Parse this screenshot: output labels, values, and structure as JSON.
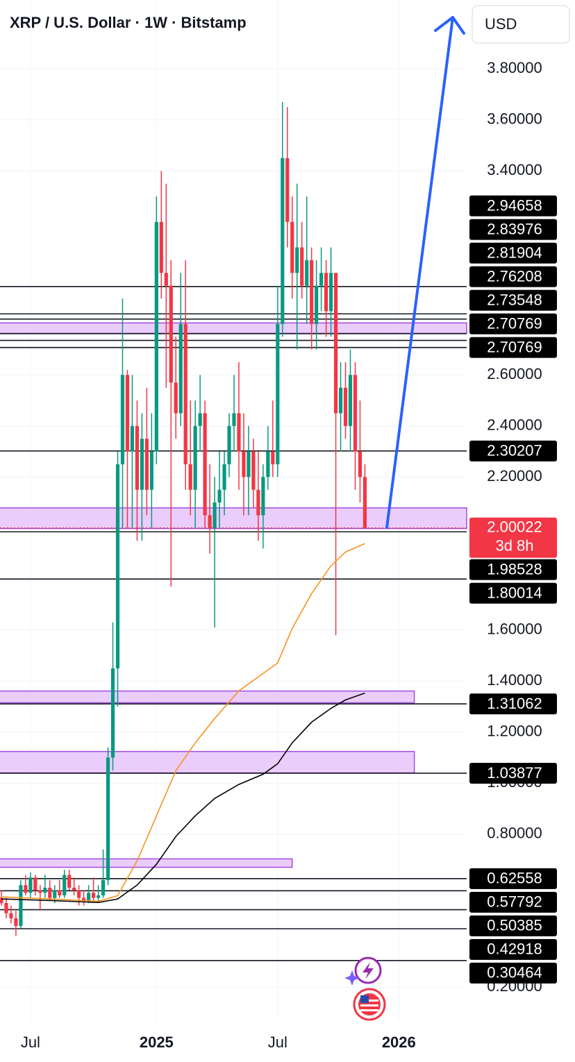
{
  "chart_data": {
    "type": "candlestick",
    "title": "XRP / U.S. Dollar · 1W · Bitstamp",
    "currency": "USD",
    "up_color": "#089981",
    "down_color": "#f23645",
    "xlim": [
      0,
      96
    ],
    "ylim": [
      0.07,
      4.07
    ],
    "yticks": [
      {
        "value": 3.8,
        "label": "3.80000"
      },
      {
        "value": 3.6,
        "label": "3.60000"
      },
      {
        "value": 3.4,
        "label": "3.40000"
      },
      {
        "value": 2.6,
        "label": "2.60000"
      },
      {
        "value": 2.4,
        "label": "2.40000"
      },
      {
        "value": 2.2,
        "label": "2.20000"
      },
      {
        "value": 1.6,
        "label": "1.60000"
      },
      {
        "value": 1.4,
        "label": "1.40000"
      },
      {
        "value": 1.2,
        "label": "1.20000"
      },
      {
        "value": 1.0,
        "label": "1.00000"
      },
      {
        "value": 0.8,
        "label": "0.80000"
      },
      {
        "value": 0.2,
        "label": "0.20000"
      }
    ],
    "xticks": [
      {
        "value": 6,
        "label": "Jul"
      },
      {
        "value": 32,
        "label": "2025"
      },
      {
        "value": 57,
        "label": "Jul"
      },
      {
        "value": 82,
        "label": "2026"
      }
    ],
    "x": [
      0,
      1,
      2,
      3,
      4,
      5,
      6,
      7,
      8,
      9,
      10,
      11,
      12,
      13,
      14,
      15,
      16,
      17,
      18,
      19,
      20,
      21,
      22,
      23,
      24,
      25,
      26,
      27,
      28,
      29,
      30,
      31,
      32,
      33,
      34,
      35,
      36,
      37,
      38,
      39,
      40,
      41,
      42,
      43,
      44,
      45,
      46,
      47,
      48,
      49,
      50,
      51,
      52,
      53,
      54,
      55,
      56,
      57,
      58,
      59,
      60,
      61,
      62,
      63,
      64,
      65,
      66,
      67,
      68,
      69,
      70,
      71,
      72,
      73,
      74,
      75
    ],
    "open": [
      0.55,
      0.53,
      0.49,
      0.47,
      0.44,
      0.6,
      0.57,
      0.63,
      0.58,
      0.57,
      0.59,
      0.55,
      0.58,
      0.56,
      0.64,
      0.59,
      0.58,
      0.55,
      0.54,
      0.57,
      0.55,
      0.56,
      0.62,
      1.1,
      1.45,
      2.25,
      2.6,
      2.3,
      2.4,
      2.15,
      2.35,
      2.15,
      2.3,
      3.2,
      3.0,
      2.95,
      2.57,
      2.45,
      2.8,
      2.25,
      2.15,
      2.4,
      2.45,
      2.05,
      2.0,
      2.1,
      2.15,
      2.25,
      2.4,
      2.45,
      2.3,
      2.2,
      2.3,
      2.15,
      2.05,
      2.2,
      2.3,
      2.25,
      2.8,
      3.45,
      3.2,
      3.0,
      3.1,
      2.95,
      3.05,
      2.8,
      2.95,
      3.0,
      2.85,
      3.0,
      2.45,
      2.55,
      2.4,
      2.6,
      2.3,
      2.2
    ],
    "high": [
      0.58,
      0.55,
      0.52,
      0.5,
      0.62,
      0.64,
      0.65,
      0.64,
      0.6,
      0.64,
      0.62,
      0.6,
      0.62,
      0.66,
      0.66,
      0.63,
      0.6,
      0.58,
      0.6,
      0.63,
      0.6,
      0.74,
      1.14,
      1.63,
      2.3,
      2.9,
      2.62,
      2.6,
      2.5,
      2.45,
      2.55,
      2.45,
      3.3,
      3.4,
      3.35,
      3.05,
      2.75,
      3.0,
      3.05,
      2.5,
      2.5,
      2.6,
      2.5,
      2.25,
      2.2,
      2.3,
      2.3,
      2.45,
      2.6,
      2.65,
      2.45,
      2.4,
      2.35,
      2.3,
      2.25,
      2.4,
      2.5,
      2.95,
      3.67,
      3.65,
      3.3,
      3.35,
      3.2,
      3.3,
      3.1,
      3.05,
      3.1,
      3.05,
      3.1,
      3.0,
      2.65,
      2.65,
      2.7,
      2.65,
      2.5,
      2.25
    ],
    "low": [
      0.52,
      0.47,
      0.45,
      0.4,
      0.43,
      0.56,
      0.55,
      0.56,
      0.5,
      0.55,
      0.54,
      0.53,
      0.55,
      0.55,
      0.58,
      0.56,
      0.52,
      0.52,
      0.53,
      0.54,
      0.53,
      0.55,
      0.6,
      1.05,
      1.3,
      2.0,
      2.0,
      2.0,
      1.95,
      1.95,
      2.05,
      2.0,
      2.25,
      2.9,
      2.55,
      1.77,
      2.35,
      2.4,
      2.15,
      2.05,
      2.0,
      2.3,
      2.0,
      1.9,
      1.61,
      2.0,
      2.05,
      2.2,
      2.3,
      2.15,
      2.05,
      2.05,
      2.08,
      1.95,
      1.92,
      2.15,
      2.2,
      2.2,
      2.75,
      3.1,
      2.9,
      2.7,
      2.9,
      2.8,
      2.7,
      2.7,
      2.85,
      2.75,
      2.75,
      1.58,
      2.3,
      2.35,
      2.3,
      2.15,
      2.1,
      2.0
    ],
    "close": [
      0.53,
      0.49,
      0.47,
      0.44,
      0.6,
      0.57,
      0.63,
      0.58,
      0.57,
      0.59,
      0.55,
      0.58,
      0.56,
      0.64,
      0.59,
      0.58,
      0.55,
      0.54,
      0.57,
      0.55,
      0.56,
      0.62,
      1.1,
      1.45,
      2.25,
      2.6,
      2.3,
      2.4,
      2.15,
      2.35,
      2.15,
      2.3,
      3.2,
      3.0,
      2.95,
      2.57,
      2.45,
      2.8,
      2.25,
      2.15,
      2.4,
      2.45,
      2.05,
      2.0,
      2.1,
      2.15,
      2.25,
      2.4,
      2.45,
      2.3,
      2.2,
      2.3,
      2.15,
      2.05,
      2.2,
      2.3,
      2.25,
      2.8,
      3.45,
      3.2,
      3.0,
      3.1,
      2.95,
      3.05,
      2.8,
      2.95,
      3.0,
      2.85,
      3.0,
      2.45,
      2.55,
      2.4,
      2.6,
      2.3,
      2.2,
      2.00022
    ],
    "moving_averages": [
      {
        "color": "#f7931e",
        "x": [
          0,
          10,
          20,
          24,
          28,
          32,
          36,
          40,
          44,
          49,
          54,
          57,
          60,
          64,
          68,
          71,
          75
        ],
        "values": [
          0.554,
          0.546,
          0.537,
          0.559,
          0.695,
          0.872,
          1.049,
          1.158,
          1.253,
          1.362,
          1.43,
          1.471,
          1.607,
          1.743,
          1.852,
          1.906,
          1.939
        ]
      },
      {
        "color": "#000000",
        "x": [
          0,
          10,
          20,
          24,
          28,
          32,
          36,
          40,
          44,
          49,
          54,
          57,
          60,
          64,
          68,
          71,
          75
        ],
        "values": [
          0.546,
          0.54,
          0.532,
          0.546,
          0.6,
          0.682,
          0.791,
          0.872,
          0.94,
          0.995,
          1.035,
          1.076,
          1.158,
          1.239,
          1.293,
          1.326,
          1.353
        ]
      }
    ],
    "zone_color": "#ebcdfb",
    "zone_border": "#a24be0",
    "zones": [
      {
        "low": 2.763,
        "high": 2.804,
        "x_end": 96
      },
      {
        "low": 1.998,
        "high": 2.079,
        "x_end": 96
      },
      {
        "low": 1.315,
        "high": 1.361,
        "x_end": 85.2
      },
      {
        "low": 1.04,
        "high": 1.124,
        "x_end": 85.2
      },
      {
        "low": 0.67,
        "high": 0.703,
        "x_end": 60
      }
    ],
    "levels": [
      2.94658,
      2.83976,
      2.81904,
      2.76208,
      2.73548,
      2.70769,
      2.70769,
      2.30207,
      1.98528,
      1.80014,
      1.31062,
      1.03877,
      0.62558,
      0.57792,
      0.50385,
      0.42918,
      0.30464
    ],
    "current_price": {
      "value": 2.00022,
      "countdown": "3d 8h",
      "color": "#f23645"
    }
  }
}
